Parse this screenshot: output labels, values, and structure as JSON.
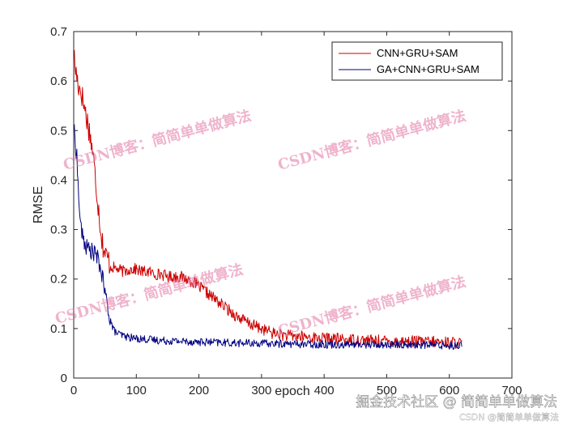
{
  "chart_data": {
    "type": "line",
    "xlabel": "epoch",
    "ylabel": "RMSE",
    "xlim": [
      0,
      700
    ],
    "ylim": [
      0,
      0.7
    ],
    "xticks": [
      "0",
      "100",
      "200",
      "300",
      "400",
      "500",
      "600",
      "700"
    ],
    "yticks": [
      "0",
      "0.1",
      "0.2",
      "0.3",
      "0.4",
      "0.5",
      "0.6",
      "0.7"
    ],
    "grid": false,
    "legend_position": "top-right",
    "series": [
      {
        "name": "CNN+GRU+SAM",
        "color": "#cc0000",
        "x": [
          0,
          2,
          5,
          8,
          12,
          15,
          20,
          25,
          30,
          35,
          40,
          45,
          50,
          55,
          60,
          70,
          80,
          90,
          100,
          110,
          120,
          130,
          140,
          150,
          160,
          170,
          180,
          190,
          200,
          210,
          220,
          230,
          240,
          250,
          260,
          270,
          280,
          290,
          300,
          310,
          320,
          330,
          340,
          350,
          360,
          380,
          400,
          420,
          440,
          460,
          480,
          500,
          520,
          540,
          560,
          580,
          600,
          620
        ],
        "y": [
          0.66,
          0.63,
          0.61,
          0.59,
          0.58,
          0.56,
          0.53,
          0.5,
          0.46,
          0.4,
          0.34,
          0.28,
          0.25,
          0.24,
          0.225,
          0.22,
          0.215,
          0.22,
          0.22,
          0.215,
          0.215,
          0.21,
          0.21,
          0.205,
          0.205,
          0.205,
          0.2,
          0.195,
          0.185,
          0.175,
          0.165,
          0.155,
          0.145,
          0.135,
          0.125,
          0.118,
          0.11,
          0.105,
          0.1,
          0.095,
          0.09,
          0.088,
          0.086,
          0.085,
          0.084,
          0.082,
          0.08,
          0.079,
          0.078,
          0.077,
          0.076,
          0.075,
          0.074,
          0.074,
          0.073,
          0.073,
          0.072,
          0.071
        ]
      },
      {
        "name": "GA+CNN+GRU+SAM",
        "color": "#000080",
        "x": [
          0,
          2,
          5,
          8,
          12,
          15,
          20,
          25,
          30,
          35,
          40,
          45,
          50,
          55,
          60,
          65,
          70,
          80,
          90,
          100,
          120,
          140,
          160,
          180,
          200,
          250,
          300,
          350,
          400,
          450,
          500,
          550,
          600,
          620
        ],
        "y": [
          0.51,
          0.48,
          0.45,
          0.36,
          0.3,
          0.28,
          0.265,
          0.26,
          0.255,
          0.25,
          0.235,
          0.21,
          0.17,
          0.14,
          0.11,
          0.095,
          0.09,
          0.085,
          0.082,
          0.08,
          0.078,
          0.076,
          0.075,
          0.074,
          0.073,
          0.071,
          0.07,
          0.069,
          0.068,
          0.068,
          0.067,
          0.067,
          0.066,
          0.066
        ]
      }
    ]
  },
  "watermark": {
    "text": "CSDN博客：简简单单做算法",
    "footer": "掘金技术社区 @ 简简单单做算法",
    "footer_small": "CSDN @简简单单做算法"
  }
}
